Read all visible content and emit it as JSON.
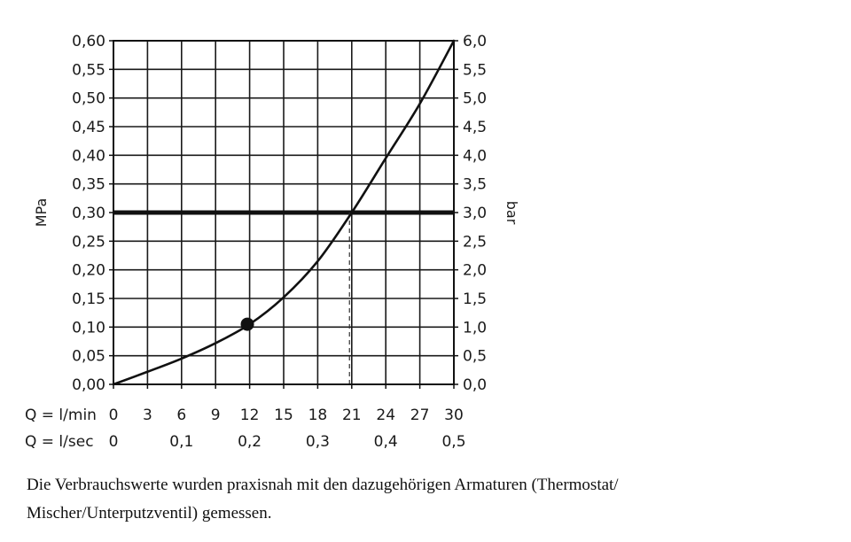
{
  "chart_data": {
    "type": "line",
    "left_axis": {
      "title": "MPa",
      "ylim": [
        0,
        0.6
      ],
      "ticks": [
        0,
        0.05,
        0.1,
        0.15,
        0.2,
        0.25,
        0.3,
        0.35,
        0.4,
        0.45,
        0.5,
        0.55,
        0.6
      ],
      "tick_labels": [
        "0,00",
        "0,05",
        "0,10",
        "0,15",
        "0,20",
        "0,25",
        "0,30",
        "0,35",
        "0,40",
        "0,45",
        "0,50",
        "0,55",
        "0,60"
      ]
    },
    "right_axis": {
      "title": "bar",
      "tick_labels": [
        "0,0",
        "0,5",
        "1,0",
        "1,5",
        "2,0",
        "2,5",
        "3,0",
        "3,5",
        "4,0",
        "4,5",
        "5,0",
        "5,5",
        "6,0"
      ]
    },
    "x_axis_lmin": {
      "label": "Q = l/min",
      "xlim": [
        0,
        30
      ],
      "ticks": [
        0,
        3,
        6,
        9,
        12,
        15,
        18,
        21,
        24,
        27,
        30
      ],
      "tick_labels": [
        "0",
        "3",
        "6",
        "9",
        "12",
        "15",
        "18",
        "21",
        "24",
        "27",
        "30"
      ]
    },
    "x_axis_lsec": {
      "label": "Q = l/sec",
      "ticks": [
        0,
        6,
        12,
        18,
        24,
        30
      ],
      "tick_labels": [
        "0",
        "0,1",
        "0,2",
        "0,3",
        "0,4",
        "0,5"
      ]
    },
    "grid": true,
    "series": [
      {
        "x": [
          0,
          3,
          6,
          9,
          12,
          15,
          18,
          21,
          24,
          27,
          30
        ],
        "y": [
          0,
          0.022,
          0.045,
          0.072,
          0.105,
          0.152,
          0.215,
          0.3,
          0.395,
          0.49,
          0.6
        ]
      }
    ],
    "marker_point": {
      "x": 11.8,
      "y": 0.105
    },
    "reference_line": {
      "y": 0.3
    },
    "dashed_drop": {
      "x": 20.8,
      "y": 0.3
    },
    "colors": {
      "line": "#111111",
      "grid": "#1a1a1a",
      "background": "#ffffff"
    }
  },
  "caption": {
    "line1": "Die Verbrauchswerte wurden praxisnah mit den dazugehörigen Armaturen (Thermostat/",
    "line2": "Mischer/Unterputzventil) gemessen."
  }
}
